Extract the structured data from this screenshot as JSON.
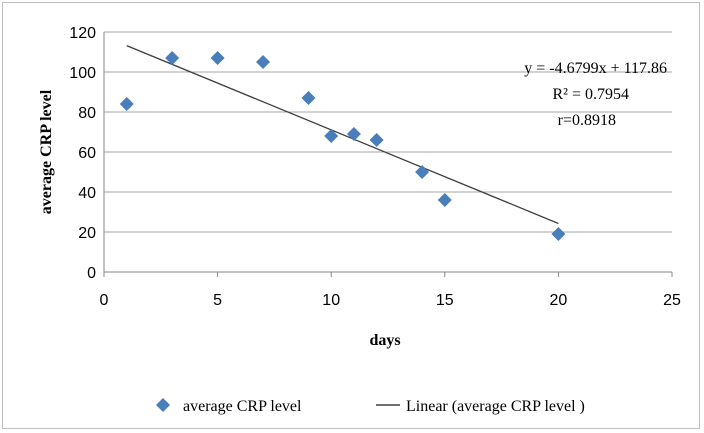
{
  "chart_data": {
    "type": "scatter",
    "title": "",
    "xlabel": "days",
    "ylabel": "average CRP level",
    "xlim": [
      0,
      25
    ],
    "ylim": [
      0,
      120
    ],
    "x_ticks": [
      "0",
      "5",
      "10",
      "15",
      "20",
      "25"
    ],
    "y_ticks": [
      "0",
      "20",
      "40",
      "60",
      "80",
      "100",
      "120"
    ],
    "grid": "horizontal",
    "legend_position": "bottom",
    "series": [
      {
        "name": "average CRP level",
        "marker": "diamond",
        "color": "#4a7ebb",
        "points": [
          {
            "x": 1,
            "y": 84
          },
          {
            "x": 3,
            "y": 107
          },
          {
            "x": 5,
            "y": 107
          },
          {
            "x": 7,
            "y": 105
          },
          {
            "x": 9,
            "y": 87
          },
          {
            "x": 10,
            "y": 68
          },
          {
            "x": 11,
            "y": 69
          },
          {
            "x": 12,
            "y": 66
          },
          {
            "x": 14,
            "y": 50
          },
          {
            "x": 15,
            "y": 36
          },
          {
            "x": 20,
            "y": 19
          }
        ]
      }
    ],
    "trendline": {
      "name": "Linear (average CRP level )",
      "slope": -4.6799,
      "intercept": 117.86,
      "x_range": [
        1,
        20
      ],
      "color": "#404040"
    },
    "annotations": [
      "y = -4.6799x + 117.86",
      "R² = 0.7954",
      "r=0.8918"
    ]
  }
}
